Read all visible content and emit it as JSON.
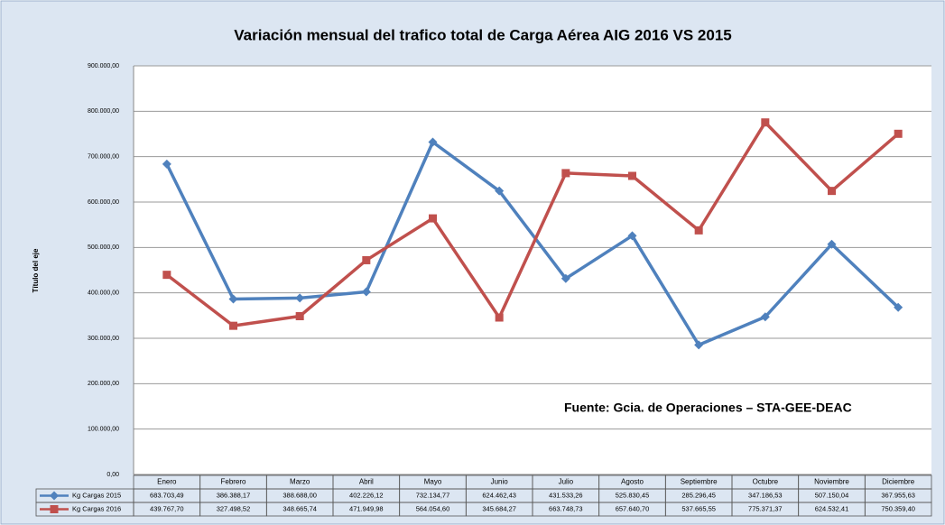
{
  "chart_data": {
    "type": "line",
    "title": "Variación mensual del trafico total de Carga Aérea AIG 2016 VS 2015",
    "y_label": "Título del eje",
    "annotation": "Fuente: Gcia. de Operaciones – STA-GEE-DEAC",
    "categories": [
      "Enero",
      "Febrero",
      "Marzo",
      "Abril",
      "Mayo",
      "Junio",
      "Julio",
      "Agosto",
      "Septiembre",
      "Octubre",
      "Noviembre",
      "Diciembre"
    ],
    "series": [
      {
        "name": "Kg Cargas 2015",
        "color": "#4f81bd",
        "marker": "diamond",
        "values": [
          683703.49,
          386388.17,
          388688.0,
          402226.12,
          732134.77,
          624462.43,
          431533.26,
          525830.45,
          285296.45,
          347186.53,
          507150.04,
          367955.63
        ],
        "value_labels": [
          "683.703,49",
          "386.388,17",
          "388.688,00",
          "402.226,12",
          "732.134,77",
          "624.462,43",
          "431.533,26",
          "525.830,45",
          "285.296,45",
          "347.186,53",
          "507.150,04",
          "367.955,63"
        ]
      },
      {
        "name": "Kg Cargas 2016",
        "color": "#c0504d",
        "marker": "square",
        "values": [
          439767.7,
          327498.52,
          348665.74,
          471949.98,
          564054.6,
          345684.27,
          663748.73,
          657640.7,
          537665.55,
          775371.37,
          624532.41,
          750359.4
        ],
        "value_labels": [
          "439.767,70",
          "327.498,52",
          "348.665,74",
          "471.949,98",
          "564.054,60",
          "345.684,27",
          "663.748,73",
          "657.640,70",
          "537.665,55",
          "775.371,37",
          "624.532,41",
          "750.359,40"
        ]
      }
    ],
    "ylim": [
      0,
      900000
    ],
    "yticks": [
      {
        "value": 0,
        "label": "0,00"
      },
      {
        "value": 100000,
        "label": "100.000,00"
      },
      {
        "value": 200000,
        "label": "200.000,00"
      },
      {
        "value": 300000,
        "label": "300.000,00"
      },
      {
        "value": 400000,
        "label": "400.000,00"
      },
      {
        "value": 500000,
        "label": "500.000,00"
      },
      {
        "value": 600000,
        "label": "600.000,00"
      },
      {
        "value": 700000,
        "label": "700.000,00"
      },
      {
        "value": 800000,
        "label": "800.000,00"
      },
      {
        "value": 900000,
        "label": "900.000,00"
      }
    ],
    "grid": true
  }
}
